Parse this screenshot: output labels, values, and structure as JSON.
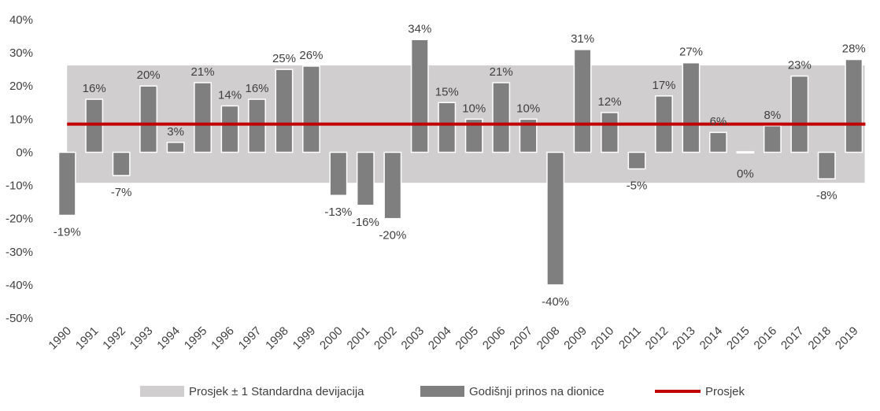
{
  "chart_data": {
    "type": "bar",
    "categories": [
      "1990",
      "1991",
      "1992",
      "1993",
      "1994",
      "1995",
      "1996",
      "1997",
      "1998",
      "1999",
      "2000",
      "2001",
      "2002",
      "2003",
      "2004",
      "2005",
      "2006",
      "2007",
      "2008",
      "2009",
      "2010",
      "2011",
      "2012",
      "2013",
      "2014",
      "2015",
      "2016",
      "2017",
      "2018",
      "2019"
    ],
    "series": [
      {
        "name": "Godišnji prinos na dionice",
        "type": "bar",
        "color": "#7f7f7f",
        "values": [
          -19,
          16,
          -7,
          20,
          3,
          21,
          14,
          16,
          25,
          26,
          -13,
          -16,
          -20,
          34,
          15,
          10,
          21,
          10,
          -40,
          31,
          12,
          -5,
          17,
          27,
          6,
          0,
          8,
          23,
          -8,
          28
        ],
        "labels": [
          "-19%",
          "16%",
          "-7%",
          "20%",
          "3%",
          "21%",
          "14%",
          "16%",
          "25%",
          "26%",
          "-13%",
          "-16%",
          "-20%",
          "34%",
          "15%",
          "10%",
          "21%",
          "10%",
          "-40%",
          "31%",
          "12%",
          "-5%",
          "17%",
          "27%",
          "6%",
          "0%",
          "8%",
          "23%",
          "-8%",
          "28%"
        ]
      },
      {
        "name": "Prosjek",
        "type": "line",
        "color": "#c00000",
        "value": 8.5
      },
      {
        "name": "Prosjek ± 1 Standardna devijacija",
        "type": "band",
        "color": "#d0cece",
        "range": [
          -9.2,
          26.2
        ]
      }
    ],
    "y_ticks": [
      "40%",
      "30%",
      "20%",
      "10%",
      "0%",
      "-10%",
      "-20%",
      "-30%",
      "-40%",
      "-50%"
    ],
    "ylim": [
      -50,
      40
    ],
    "legend_position": "bottom",
    "title": "",
    "xlabel": "",
    "ylabel": ""
  }
}
